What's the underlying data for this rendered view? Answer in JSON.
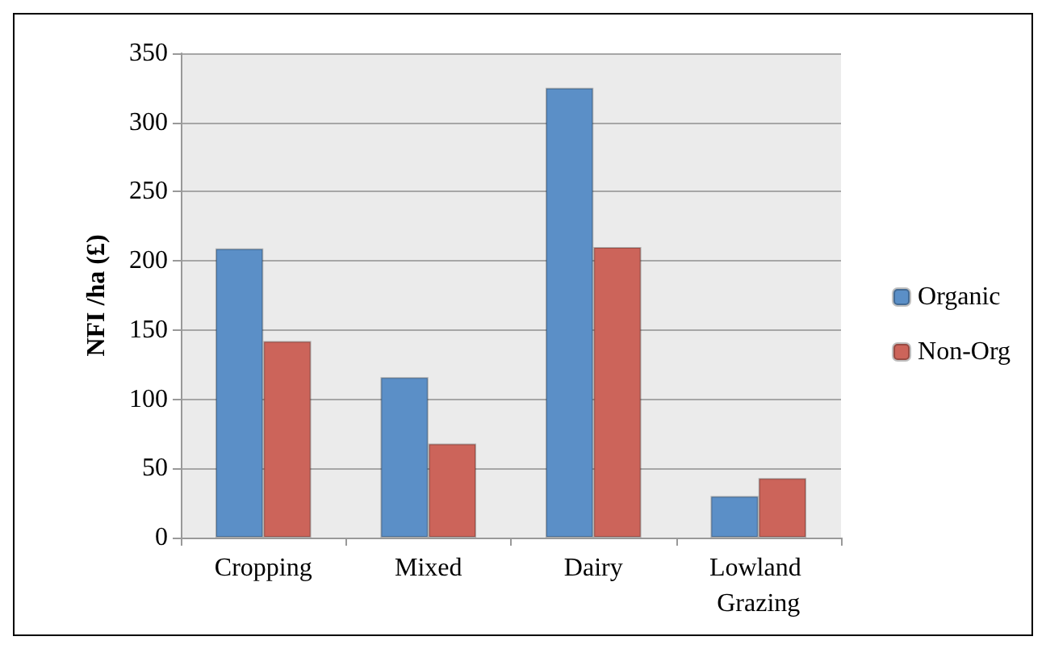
{
  "chart_data": {
    "type": "bar",
    "ylabel": "NFI /ha (£)",
    "categories": [
      "Cropping",
      "Mixed",
      "Dairy",
      "Lowland Grazing"
    ],
    "series": [
      {
        "name": "Organic",
        "color": "#5b8fc7",
        "values": [
          209,
          116,
          325,
          30
        ]
      },
      {
        "name": "Non-Org",
        "color": "#cc645a",
        "values": [
          142,
          68,
          210,
          43
        ]
      }
    ],
    "ylim": [
      0,
      350
    ],
    "yticks": [
      0,
      50,
      100,
      150,
      200,
      250,
      300,
      350
    ],
    "grid": "y",
    "legend": "right"
  }
}
